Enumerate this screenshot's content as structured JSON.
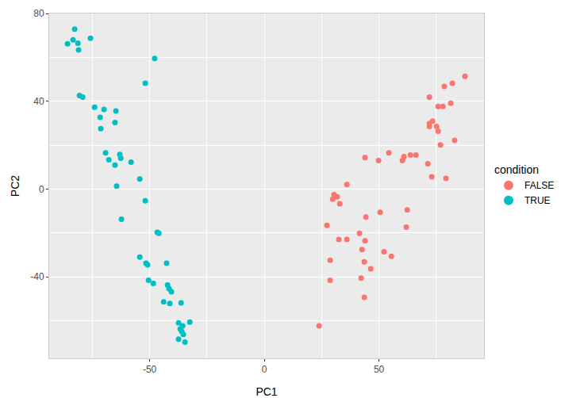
{
  "chart_data": {
    "type": "scatter",
    "xlabel": "PC1",
    "ylabel": "PC2",
    "legend_title": "condition",
    "legend": "right",
    "grid": true,
    "marker": "circle",
    "xlim": [
      -93.8,
      95.8
    ],
    "ylim": [
      -77.1,
      80
    ],
    "xticks": [
      -50,
      0,
      50
    ],
    "yticks": [
      -40,
      0,
      40,
      80
    ],
    "series": [
      {
        "name": "FALSE",
        "color": "#F8766D",
        "x": [
          23.9,
          28.7,
          28.7,
          27.3,
          29.8,
          30.4,
          31.8,
          32.9,
          32.5,
          36.0,
          36.0,
          41.5,
          42.6,
          42.2,
          43.6,
          43.6,
          43.9,
          44.3,
          43.9,
          46.4,
          49.8,
          50.5,
          52.2,
          54.3,
          55.4,
          60.2,
          60.9,
          62.3,
          61.9,
          63.7,
          66.1,
          71.3,
          72.0,
          72.0,
          73.4,
          73.0,
          72.0,
          75.1,
          75.8,
          75.8,
          76.8,
          77.9,
          78.5,
          79.2,
          81.3,
          82.0,
          83.0,
          87.5
        ],
        "y": [
          -62.3,
          -41.5,
          -32.4,
          -16.5,
          -4.6,
          -2.5,
          -3.5,
          -6.7,
          -22.9,
          2.1,
          -22.9,
          -20.1,
          -27.5,
          -40.5,
          -33.1,
          -49.3,
          -23.6,
          -12.7,
          14.4,
          -36.3,
          13.0,
          -10.6,
          -28.5,
          16.5,
          -30.6,
          13.0,
          14.8,
          -9.5,
          -17.3,
          15.5,
          15.5,
          11.6,
          28.5,
          29.9,
          31.0,
          5.6,
          41.9,
          28.5,
          37.7,
          26.4,
          20.1,
          37.7,
          46.8,
          4.9,
          39.1,
          48.2,
          22.2,
          51.4
        ]
      },
      {
        "name": "TRUE",
        "color": "#00BFC4",
        "x": [
          -85.8,
          -82.7,
          -83.4,
          -81.3,
          -81.0,
          -75.8,
          -80.6,
          -79.2,
          -74.0,
          -69.9,
          -71.6,
          -64.7,
          -71.3,
          -65.1,
          -69.2,
          -67.8,
          -63.0,
          -62.6,
          -65.1,
          -64.4,
          -58.1,
          -54.3,
          -62.3,
          -51.9,
          -47.8,
          -51.9,
          -54.3,
          -51.6,
          -50.9,
          -50.5,
          -48.4,
          -46.7,
          -46.0,
          -42.6,
          -41.5,
          -42.2,
          -40.5,
          -43.9,
          -41.2,
          -36.3,
          -37.4,
          -36.7,
          -36.0,
          -35.3,
          -37.4,
          -34.6,
          -32.5,
          -35.6
        ],
        "y": [
          66.2,
          72.9,
          68.0,
          66.5,
          63.4,
          68.7,
          42.6,
          41.9,
          37.3,
          36.3,
          32.7,
          35.6,
          27.5,
          30.3,
          16.5,
          13.4,
          15.8,
          14.1,
          10.9,
          1.4,
          12.3,
          4.6,
          -13.7,
          48.2,
          59.5,
          -5.3,
          -31.0,
          -33.8,
          -34.5,
          -41.5,
          -43.0,
          -19.7,
          -20.1,
          -33.8,
          -45.4,
          -43.7,
          -46.8,
          -51.4,
          -52.1,
          -51.8,
          -60.9,
          -63.7,
          -64.8,
          -66.2,
          -68.3,
          -69.7,
          -60.6,
          -62.3
        ]
      }
    ]
  }
}
